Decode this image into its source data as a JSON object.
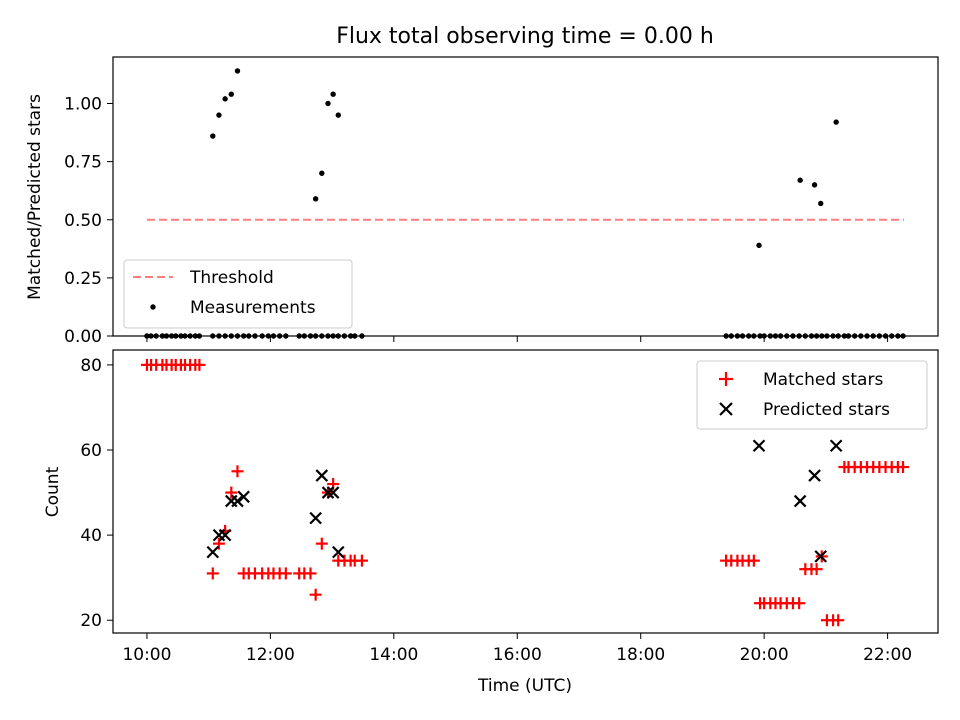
{
  "figure": {
    "title": "Flux total observing time = 0.00 h"
  },
  "colors": {
    "threshold": "#ff7f7f",
    "measurements": "#000000",
    "matched": "#ff0000",
    "predicted": "#000000"
  },
  "chart_data": [
    {
      "type": "scatter",
      "title": "Flux total observing time = 0.00 h",
      "xlabel": "",
      "ylabel": "Matched/Predicted stars",
      "xlim": [
        "09:27",
        "22:49"
      ],
      "ylim": [
        0.0,
        1.2
      ],
      "yticks": [
        "0.00",
        "0.25",
        "0.50",
        "0.75",
        "1.00"
      ],
      "legend_location": "lower-left",
      "legend": [
        "Threshold",
        "Measurements"
      ],
      "series": [
        {
          "name": "Threshold",
          "style": "dashed-line",
          "x": [
            "10:00",
            "22:16"
          ],
          "y": [
            0.5,
            0.5
          ]
        },
        {
          "name": "Measurements",
          "style": "dot",
          "x": [
            "10:00",
            "10:04",
            "10:09",
            "10:15",
            "10:19",
            "10:24",
            "10:28",
            "10:33",
            "10:37",
            "10:42",
            "10:47",
            "10:51",
            "11:04",
            "11:10",
            "11:16",
            "11:22",
            "11:28",
            "11:34",
            "11:39",
            "11:45",
            "11:52",
            "11:58",
            "12:03",
            "12:09",
            "12:15",
            "12:28",
            "12:33",
            "12:39",
            "12:44",
            "12:50",
            "12:56",
            "13:01",
            "13:06",
            "13:12",
            "13:18",
            "13:22",
            "13:29",
            "19:23",
            "19:28",
            "19:34",
            "19:39",
            "19:45",
            "19:50",
            "19:56",
            "20:00",
            "20:06",
            "20:11",
            "20:16",
            "20:22",
            "20:28",
            "20:34",
            "20:40",
            "20:46",
            "20:51",
            "20:56",
            "21:01",
            "21:07",
            "21:12",
            "21:18",
            "21:22",
            "21:28",
            "21:34",
            "21:40",
            "21:46",
            "21:52",
            "21:58",
            "22:04",
            "22:10",
            "22:15",
            "11:04",
            "11:10",
            "11:16",
            "11:22",
            "11:28",
            "12:44",
            "12:50",
            "12:56",
            "13:01",
            "13:06",
            "19:55",
            "20:35",
            "20:49",
            "20:55",
            "21:10"
          ],
          "y": [
            0,
            0,
            0,
            0,
            0,
            0,
            0,
            0,
            0,
            0,
            0,
            0,
            0,
            0,
            0,
            0,
            0,
            0,
            0,
            0,
            0,
            0,
            0,
            0,
            0,
            0,
            0,
            0,
            0,
            0,
            0,
            0,
            0,
            0,
            0,
            0,
            0,
            0,
            0,
            0,
            0,
            0,
            0,
            0,
            0,
            0,
            0,
            0,
            0,
            0,
            0,
            0,
            0,
            0,
            0,
            0,
            0,
            0,
            0,
            0,
            0,
            0,
            0,
            0,
            0,
            0,
            0,
            0,
            0,
            0.86,
            0.95,
            1.02,
            1.04,
            1.14,
            0.59,
            0.7,
            1.0,
            1.04,
            0.95,
            0.39,
            0.67,
            0.65,
            0.57,
            0.92
          ]
        }
      ]
    },
    {
      "type": "scatter",
      "title": "",
      "xlabel": "Time (UTC)",
      "ylabel": "Count",
      "xlim": [
        "09:27",
        "22:49"
      ],
      "ylim": [
        17,
        83.5
      ],
      "xticks": [
        "10:00",
        "12:00",
        "14:00",
        "16:00",
        "18:00",
        "20:00",
        "22:00"
      ],
      "yticks": [
        "20",
        "40",
        "60",
        "80"
      ],
      "legend_location": "top-right",
      "legend": [
        "Matched stars",
        "Predicted stars"
      ],
      "series": [
        {
          "name": "Matched stars",
          "style": "plus",
          "x": [
            "10:00",
            "10:04",
            "10:09",
            "10:15",
            "10:19",
            "10:24",
            "10:28",
            "10:33",
            "10:37",
            "10:42",
            "10:47",
            "10:51",
            "11:04",
            "11:10",
            "11:16",
            "11:22",
            "11:28",
            "11:34",
            "11:39",
            "11:45",
            "11:52",
            "11:58",
            "12:03",
            "12:09",
            "12:15",
            "12:28",
            "12:33",
            "12:39",
            "12:44",
            "12:50",
            "12:56",
            "13:01",
            "13:06",
            "13:12",
            "13:18",
            "13:22",
            "13:29",
            "19:23",
            "19:28",
            "19:34",
            "19:39",
            "19:45",
            "19:50",
            "19:56",
            "20:00",
            "20:06",
            "20:11",
            "20:16",
            "20:22",
            "20:28",
            "20:34",
            "20:40",
            "20:46",
            "20:51",
            "20:56",
            "21:01",
            "21:07",
            "21:12",
            "21:18",
            "21:22",
            "21:28",
            "21:34",
            "21:40",
            "21:46",
            "21:52",
            "21:58",
            "22:04",
            "22:10",
            "22:15"
          ],
          "y": [
            80,
            80,
            80,
            80,
            80,
            80,
            80,
            80,
            80,
            80,
            80,
            80,
            31,
            38,
            41,
            50,
            55,
            31,
            31,
            31,
            31,
            31,
            31,
            31,
            31,
            31,
            31,
            31,
            26,
            38,
            50,
            52,
            34,
            34,
            34,
            34,
            34,
            34,
            34,
            34,
            34,
            34,
            34,
            24,
            24,
            24,
            24,
            24,
            24,
            24,
            24,
            32,
            32,
            32,
            35,
            20,
            20,
            20,
            56,
            56,
            56,
            56,
            56,
            56,
            56,
            56,
            56,
            56,
            56
          ]
        },
        {
          "name": "Predicted stars",
          "style": "x",
          "x": [
            "11:04",
            "11:10",
            "11:16",
            "11:22",
            "11:28",
            "11:34",
            "12:44",
            "12:50",
            "12:56",
            "13:01",
            "13:06",
            "19:55",
            "20:35",
            "20:49",
            "20:55",
            "21:10"
          ],
          "y": [
            36,
            40,
            40,
            48,
            48,
            49,
            44,
            54,
            50,
            50,
            36,
            61,
            48,
            54,
            35,
            61
          ]
        }
      ]
    }
  ]
}
